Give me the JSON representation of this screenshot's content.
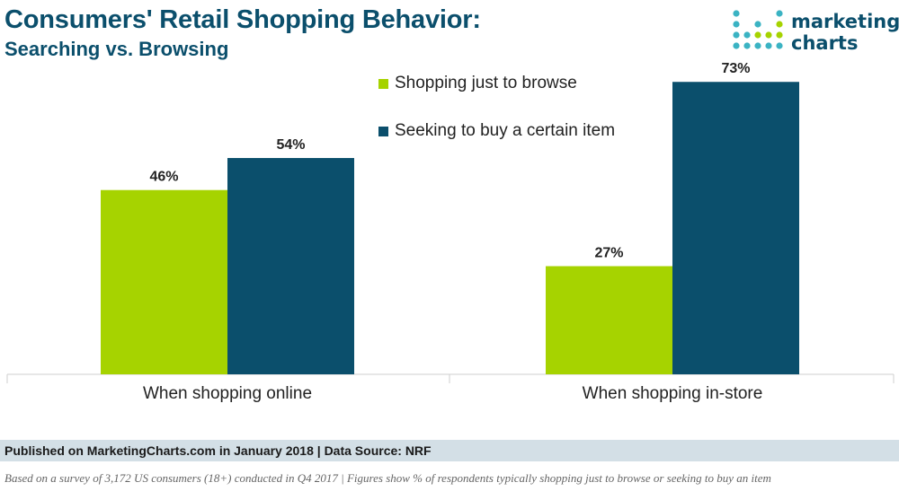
{
  "header": {
    "title": "Consumers' Retail Shopping Behavior:",
    "subtitle": "Searching vs. Browsing"
  },
  "logo": {
    "line1": "marketing",
    "line2": "charts"
  },
  "chart_data": {
    "type": "bar",
    "categories": [
      "When shopping online",
      "When shopping in-store"
    ],
    "series": [
      {
        "name": "Shopping just to browse",
        "values": [
          46,
          27
        ],
        "color": "#a6d300"
      },
      {
        "name": "Seeking to buy a certain item",
        "values": [
          54,
          73
        ],
        "color": "#0b4f6c"
      }
    ],
    "value_suffix": "%",
    "title": "Consumers' Retail Shopping Behavior: Searching vs. Browsing",
    "xlabel": "",
    "ylabel": "",
    "ylim": [
      0,
      80
    ],
    "grid": false,
    "legend": "top-center"
  },
  "footer": {
    "published": "Published on MarketingCharts.com in January 2018 | Data Source: NRF",
    "note": "Based on a survey of 3,172 US consumers (18+) conducted in Q4 2017 | Figures show % of respondents typically shopping just to browse or seeking to buy an item"
  }
}
